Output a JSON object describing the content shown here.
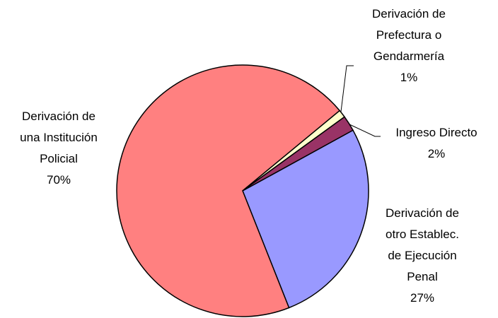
{
  "chart_data": {
    "type": "pie",
    "categories": [
      "Derivación de otro Establec. de Ejecución Penal",
      "Derivación de una Institución Policial",
      "Derivación de Prefectura o Gendarmería",
      "Ingreso Directo"
    ],
    "values": [
      27,
      70,
      1,
      2
    ],
    "value_labels": [
      "27%",
      "70%",
      "1%",
      "2%"
    ],
    "colors": [
      "#9999ff",
      "#ff8080",
      "#ffffcc",
      "#993366"
    ]
  }
}
